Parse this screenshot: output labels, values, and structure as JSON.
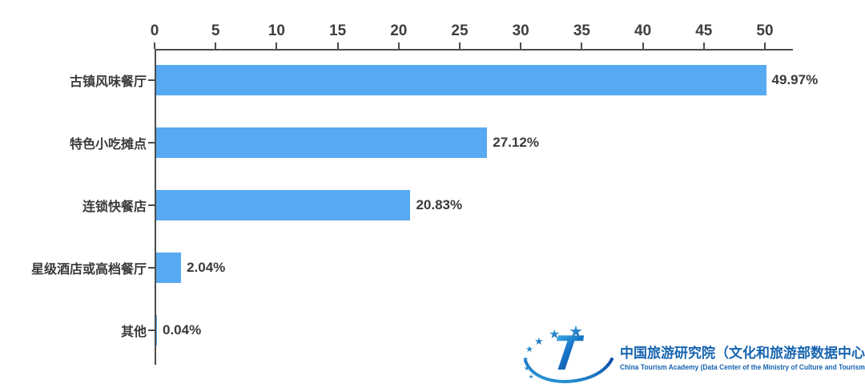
{
  "chart_data": {
    "type": "bar",
    "orientation": "horizontal",
    "title": "",
    "xlabel": "",
    "ylabel": "",
    "categories": [
      "古镇风味餐厅",
      "特色小吃摊点",
      "连锁快餐店",
      "星级酒店或高档餐厅",
      "其他"
    ],
    "values": [
      49.97,
      27.12,
      20.83,
      2.04,
      0.04
    ],
    "value_labels": [
      "49.97%",
      "27.12%",
      "20.83%",
      "2.04%",
      "0.04%"
    ],
    "x_ticks": [
      0,
      5,
      10,
      15,
      20,
      25,
      30,
      35,
      40,
      45,
      50
    ],
    "xlim": [
      0,
      50
    ],
    "grid": false,
    "legend": false,
    "axis_position": "top",
    "bar_color": "#57a9f2",
    "axis_color": "#4c4c4c",
    "text_color": "#3a3a3a"
  },
  "branding": {
    "logo": {
      "letter": "T",
      "star_icon": "★"
    },
    "name_cn": "中国旅游研究院（文化和旅游部数据中心）",
    "name_en": "China Tourism Academy (Data Center of the Ministry of Culture and Tourism)",
    "brand_color": "#1664b0"
  }
}
